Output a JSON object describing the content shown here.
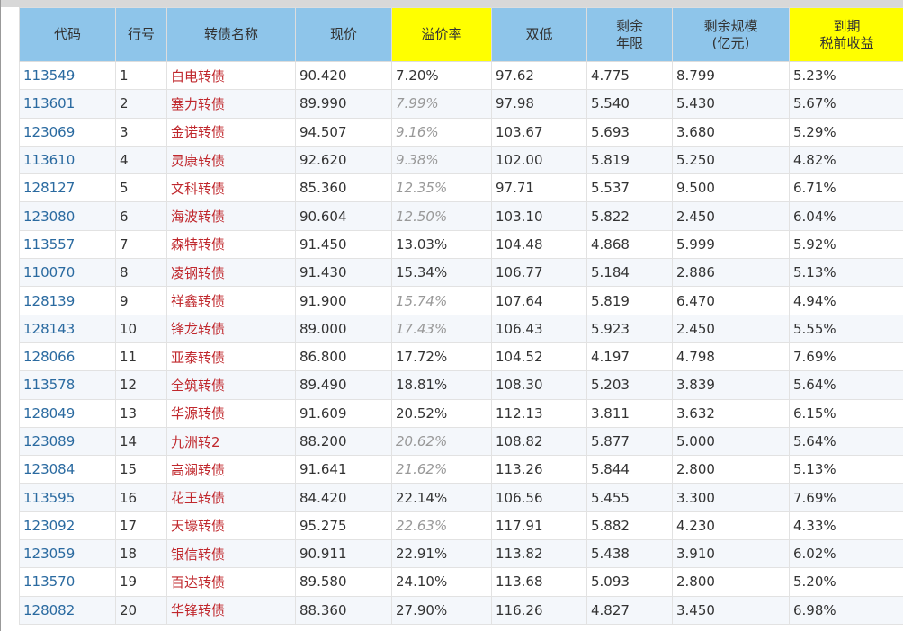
{
  "table": {
    "columns": [
      "代码",
      "行号",
      "转债名称",
      "现价",
      "溢价率",
      "双低",
      "剩余\n年限",
      "剩余规模\n(亿元)",
      "到期\n税前收益"
    ],
    "rows": [
      [
        "113549",
        "1",
        "白电转债",
        "90.420",
        "7.20%",
        "97.62",
        "4.775",
        "8.799",
        "5.23%"
      ],
      [
        "113601",
        "2",
        "塞力转债",
        "89.990",
        "7.99%",
        "97.98",
        "5.540",
        "5.430",
        "5.67%"
      ],
      [
        "123069",
        "3",
        "金诺转债",
        "94.507",
        "9.16%",
        "103.67",
        "5.693",
        "3.680",
        "5.29%"
      ],
      [
        "113610",
        "4",
        "灵康转债",
        "92.620",
        "9.38%",
        "102.00",
        "5.819",
        "5.250",
        "4.82%"
      ],
      [
        "128127",
        "5",
        "文科转债",
        "85.360",
        "12.35%",
        "97.71",
        "5.537",
        "9.500",
        "6.71%"
      ],
      [
        "123080",
        "6",
        "海波转债",
        "90.604",
        "12.50%",
        "103.10",
        "5.822",
        "2.450",
        "6.04%"
      ],
      [
        "113557",
        "7",
        "森特转债",
        "91.450",
        "13.03%",
        "104.48",
        "4.868",
        "5.999",
        "5.92%"
      ],
      [
        "110070",
        "8",
        "凌钢转债",
        "91.430",
        "15.34%",
        "106.77",
        "5.184",
        "2.886",
        "5.13%"
      ],
      [
        "128139",
        "9",
        "祥鑫转债",
        "91.900",
        "15.74%",
        "107.64",
        "5.819",
        "6.470",
        "4.94%"
      ],
      [
        "128143",
        "10",
        "锋龙转债",
        "89.000",
        "17.43%",
        "106.43",
        "5.923",
        "2.450",
        "5.55%"
      ],
      [
        "128066",
        "11",
        "亚泰转债",
        "86.800",
        "17.72%",
        "104.52",
        "4.197",
        "4.798",
        "7.69%"
      ],
      [
        "113578",
        "12",
        "全筑转债",
        "89.490",
        "18.81%",
        "108.30",
        "5.203",
        "3.839",
        "5.64%"
      ],
      [
        "128049",
        "13",
        "华源转债",
        "91.609",
        "20.52%",
        "112.13",
        "3.811",
        "3.632",
        "6.15%"
      ],
      [
        "123089",
        "14",
        "九洲转2",
        "88.200",
        "20.62%",
        "108.82",
        "5.877",
        "5.000",
        "5.64%"
      ],
      [
        "123084",
        "15",
        "高澜转债",
        "91.641",
        "21.62%",
        "113.26",
        "5.844",
        "2.800",
        "5.13%"
      ],
      [
        "113595",
        "16",
        "花王转债",
        "84.420",
        "22.14%",
        "106.56",
        "5.455",
        "3.300",
        "7.69%"
      ],
      [
        "123092",
        "17",
        "天壕转债",
        "95.275",
        "22.63%",
        "117.91",
        "5.882",
        "4.230",
        "4.33%"
      ],
      [
        "123059",
        "18",
        "银信转债",
        "90.911",
        "22.91%",
        "113.82",
        "5.438",
        "3.910",
        "6.02%"
      ],
      [
        "113570",
        "19",
        "百达转债",
        "89.580",
        "24.10%",
        "113.68",
        "5.093",
        "2.800",
        "5.20%"
      ],
      [
        "128082",
        "20",
        "华锋转债",
        "88.360",
        "27.90%",
        "116.26",
        "4.827",
        "3.450",
        "6.98%"
      ]
    ]
  }
}
